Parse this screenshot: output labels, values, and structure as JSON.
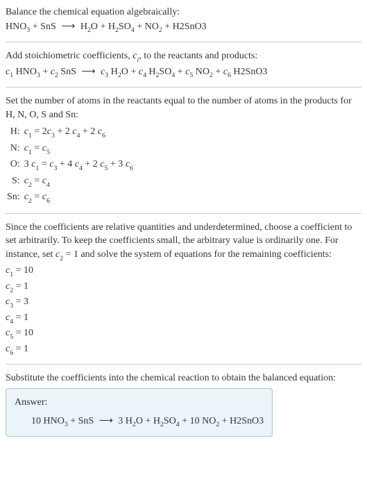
{
  "intro": {
    "line1": "Balance the chemical equation algebraically:",
    "reactant1": "HNO",
    "reactant1_sub": "3",
    "reactant2": "SnS",
    "product1": "H",
    "product1_sub": "2",
    "product1b": "O",
    "product2": "H",
    "product2_sub": "2",
    "product2b": "SO",
    "product2b_sub": "4",
    "product3": "NO",
    "product3_sub": "2",
    "product4": "H2SnO3"
  },
  "stoich": {
    "text_a": "Add stoichiometric coefficients, ",
    "ci": "c",
    "ci_sub": "i",
    "text_b": ", to the reactants and products:",
    "c1": "c",
    "c1_sub": "1",
    "c2": "c",
    "c2_sub": "2",
    "c3": "c",
    "c3_sub": "3",
    "c4": "c",
    "c4_sub": "4",
    "c5": "c",
    "c5_sub": "5",
    "c6": "c",
    "c6_sub": "6",
    "r1": "HNO",
    "r1_sub": "3",
    "r2": "SnS",
    "p1": "H",
    "p1_sub": "2",
    "p1b": "O",
    "p2": "H",
    "p2_sub": "2",
    "p2b": "SO",
    "p2b_sub": "4",
    "p3": "NO",
    "p3_sub": "2",
    "p4": "H2SnO3"
  },
  "atoms": {
    "text1": "Set the number of atoms in the reactants equal to the number of atoms in the products for H, N, O, S and Sn:",
    "rows": [
      {
        "el": "H:",
        "lhs": "c",
        "lhs_sub": "1",
        "rhs_a": " = 2",
        "rhs_b": "c",
        "rhs_b_sub": "3",
        "rhs_c": " + 2",
        "rhs_d": "c",
        "rhs_d_sub": "4",
        "rhs_e": " + 2",
        "rhs_f": "c",
        "rhs_f_sub": "6"
      },
      {
        "el": "N:",
        "lhs": "c",
        "lhs_sub": "1",
        "rhs_a": " = ",
        "rhs_b": "c",
        "rhs_b_sub": "5",
        "rhs_c": "",
        "rhs_d": "",
        "rhs_d_sub": "",
        "rhs_e": "",
        "rhs_f": "",
        "rhs_f_sub": ""
      },
      {
        "el": "O:",
        "lhs": "3 c",
        "lhs_sub": "1",
        "rhs_a": " = ",
        "rhs_b": "c",
        "rhs_b_sub": "3",
        "rhs_c": " + 4",
        "rhs_d": "c",
        "rhs_d_sub": "4",
        "rhs_e": " + 2",
        "rhs_f": "c",
        "rhs_f_sub": "5",
        "rhs_g": " + 3",
        "rhs_h": "c",
        "rhs_h_sub": "6"
      },
      {
        "el": "S:",
        "lhs": "c",
        "lhs_sub": "2",
        "rhs_a": " = ",
        "rhs_b": "c",
        "rhs_b_sub": "4",
        "rhs_c": "",
        "rhs_d": "",
        "rhs_d_sub": "",
        "rhs_e": "",
        "rhs_f": "",
        "rhs_f_sub": ""
      },
      {
        "el": "Sn:",
        "lhs": "c",
        "lhs_sub": "2",
        "rhs_a": " = ",
        "rhs_b": "c",
        "rhs_b_sub": "6",
        "rhs_c": "",
        "rhs_d": "",
        "rhs_d_sub": "",
        "rhs_e": "",
        "rhs_f": "",
        "rhs_f_sub": ""
      }
    ]
  },
  "choose": {
    "text_a": "Since the coefficients are relative quantities and underdetermined, choose a coefficient to set arbitrarily. To keep the coefficients small, the arbitrary value is ordinarily one. For instance, set ",
    "cvar": "c",
    "cvar_sub": "2",
    "text_b": " = 1 and solve the system of equations for the remaining coefficients:",
    "coeffs": [
      {
        "c": "c",
        "sub": "1",
        "val": " = 10"
      },
      {
        "c": "c",
        "sub": "2",
        "val": " = 1"
      },
      {
        "c": "c",
        "sub": "3",
        "val": " = 3"
      },
      {
        "c": "c",
        "sub": "4",
        "val": " = 1"
      },
      {
        "c": "c",
        "sub": "5",
        "val": " = 10"
      },
      {
        "c": "c",
        "sub": "6",
        "val": " = 1"
      }
    ]
  },
  "final": {
    "text": "Substitute the coefficients into the chemical reaction to obtain the balanced equation:",
    "answer_label": "Answer:",
    "eq": {
      "a": "10 HNO",
      "a_sub": "3",
      "b": " + SnS",
      "c": "3 H",
      "c_sub": "2",
      "c2": "O",
      "d": " + H",
      "d_sub": "2",
      "d2": "SO",
      "d2_sub": "4",
      "e": " + 10 NO",
      "e_sub": "2",
      "f": " + H2SnO3"
    }
  }
}
